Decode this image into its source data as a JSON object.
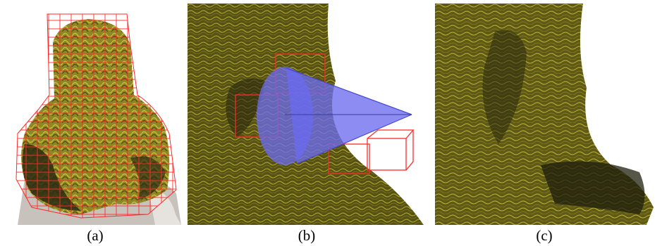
{
  "captions": {
    "a": "(a)",
    "b": "(b)",
    "c": "(c)"
  },
  "colors": {
    "hair_light": "#a39a2a",
    "hair_mid": "#6e6a1c",
    "hair_dark": "#2a2a10",
    "grid_red": "#ff2a2a",
    "cone_blue": "#6b6bf0",
    "skin": "#c8c2bc",
    "background": "#ffffff"
  }
}
